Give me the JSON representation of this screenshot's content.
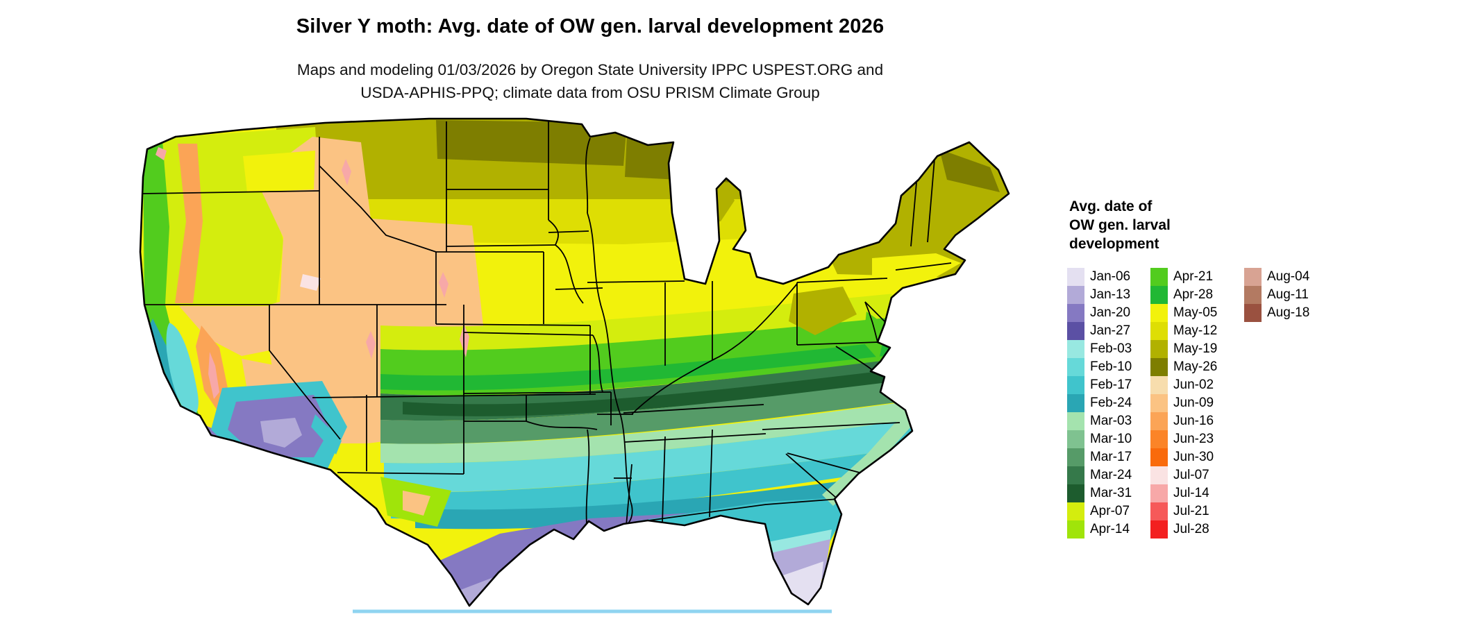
{
  "title": "Silver Y moth: Avg. date of OW gen. larval development 2026",
  "subtitle": {
    "line1": "Maps and modeling 01/03/2026 by Oregon State University IPPC USPEST.ORG and",
    "line2": "USDA-APHIS-PPQ; climate data from OSU PRISM Climate Group"
  },
  "legend": {
    "title_lines": [
      "Avg. date of",
      "OW gen. larval",
      "development"
    ],
    "columns": [
      {
        "entries": [
          {
            "label": "Jan-06",
            "color": "#e4e0f1"
          },
          {
            "label": "Jan-13",
            "color": "#b2aad8"
          },
          {
            "label": "Jan-20",
            "color": "#8579c2"
          },
          {
            "label": "Jan-27",
            "color": "#5b50a4"
          },
          {
            "label": "Feb-03",
            "color": "#98e8e1"
          },
          {
            "label": "Feb-10",
            "color": "#66d9d9"
          },
          {
            "label": "Feb-17",
            "color": "#40c4cc"
          },
          {
            "label": "Feb-24",
            "color": "#2aa6b4"
          },
          {
            "label": "Mar-03",
            "color": "#a4e3ae"
          },
          {
            "label": "Mar-10",
            "color": "#7fc290"
          },
          {
            "label": "Mar-17",
            "color": "#569b68"
          },
          {
            "label": "Mar-24",
            "color": "#35794a"
          },
          {
            "label": "Mar-31",
            "color": "#1d5c2e"
          },
          {
            "label": "Apr-07",
            "color": "#d4ed0e"
          },
          {
            "label": "Apr-14",
            "color": "#a0e40a"
          }
        ]
      },
      {
        "entries": [
          {
            "label": "Apr-21",
            "color": "#52cc1e"
          },
          {
            "label": "Apr-28",
            "color": "#21b834"
          },
          {
            "label": "May-05",
            "color": "#f2f20c"
          },
          {
            "label": "May-12",
            "color": "#dede04"
          },
          {
            "label": "May-19",
            "color": "#b1b100"
          },
          {
            "label": "May-26",
            "color": "#7e7e00"
          },
          {
            "label": "Jun-02",
            "color": "#f7ddad"
          },
          {
            "label": "Jun-09",
            "color": "#fbc383"
          },
          {
            "label": "Jun-16",
            "color": "#fba456"
          },
          {
            "label": "Jun-23",
            "color": "#fb8428"
          },
          {
            "label": "Jun-30",
            "color": "#f96a0c"
          },
          {
            "label": "Jul-07",
            "color": "#fae3e3"
          },
          {
            "label": "Jul-14",
            "color": "#f7a8a8"
          },
          {
            "label": "Jul-21",
            "color": "#f65959"
          },
          {
            "label": "Jul-28",
            "color": "#f32020"
          }
        ]
      },
      {
        "entries": [
          {
            "label": "Aug-04",
            "color": "#d8a393"
          },
          {
            "label": "Aug-11",
            "color": "#b37a62"
          },
          {
            "label": "Aug-18",
            "color": "#9a5140"
          }
        ]
      }
    ]
  },
  "map": {
    "outline_color": "#000000",
    "state_border_color": "#000000",
    "ocean_color": "#ffffff",
    "coast_water_color": "#8fd4f0"
  }
}
